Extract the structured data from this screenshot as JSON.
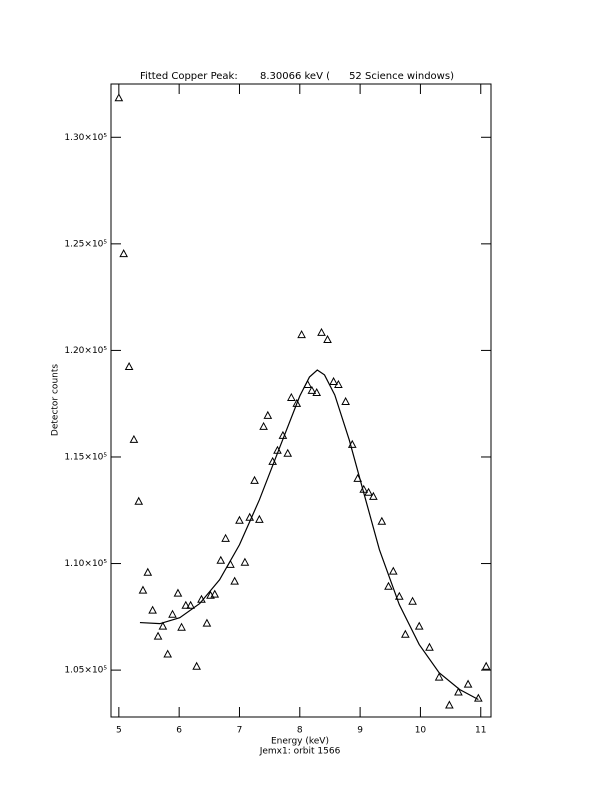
{
  "chart_data": {
    "type": "scatter",
    "title": "Fitted Copper Peak:       8.30066 keV (      52 Science windows)",
    "x_label": "Energy (keV)",
    "subtitle": "Jemx1: orbit 1566",
    "y_label": "Detector counts",
    "xlim": [
      4.87,
      11.17
    ],
    "xticks": [
      5,
      6,
      7,
      8,
      9,
      10,
      11
    ],
    "ylim": [
      102800,
      132500
    ],
    "yticks": [
      {
        "value": 105000,
        "label": "1.05×10⁵"
      },
      {
        "value": 110000,
        "label": "1.10×10⁵"
      },
      {
        "value": 115000,
        "label": "1.15×10⁵"
      },
      {
        "value": 120000,
        "label": "1.20×10⁵"
      },
      {
        "value": 125000,
        "label": "1.25×10⁵"
      },
      {
        "value": 130000,
        "label": "1.30×10⁵"
      }
    ],
    "series": [
      {
        "style": "markers",
        "marker": "triangle",
        "color": "#000000",
        "x": [
          5.0,
          5.08,
          5.17,
          5.25,
          5.33,
          5.4,
          5.48,
          5.56,
          5.65,
          5.73,
          5.81,
          5.89,
          5.98,
          6.04,
          6.11,
          6.19,
          6.29,
          6.37,
          6.46,
          6.52,
          6.59,
          6.69,
          6.77,
          6.85,
          6.92,
          7.0,
          7.09,
          7.17,
          7.25,
          7.33,
          7.4,
          7.47,
          7.55,
          7.63,
          7.72,
          7.8,
          7.86,
          7.95,
          8.03,
          8.13,
          8.2,
          8.28,
          8.36,
          8.46,
          8.56,
          8.64,
          8.76,
          8.87,
          8.96,
          9.06,
          9.14,
          9.22,
          9.36,
          9.47,
          9.55,
          9.65,
          9.75,
          9.87,
          9.98,
          10.15,
          10.31,
          10.48,
          10.63,
          10.79,
          10.96,
          11.09
        ],
        "values": [
          131830,
          124520,
          119220,
          115800,
          112900,
          108730,
          109570,
          107790,
          106570,
          107040,
          105730,
          107600,
          108590,
          106990,
          108020,
          108020,
          105160,
          108300,
          107180,
          108490,
          108540,
          110130,
          111160,
          109940,
          109150,
          112010,
          110040,
          112150,
          113880,
          112050,
          116410,
          116930,
          114770,
          115290,
          115990,
          115150,
          117770,
          117490,
          120720,
          118380,
          118100,
          118000,
          120820,
          120490,
          118520,
          118380,
          117580,
          115570,
          113970,
          113460,
          113320,
          113130,
          111960,
          108910,
          109620,
          108440,
          106660,
          108210,
          107040,
          106050,
          104650,
          103340,
          103950,
          104320,
          103660,
          105160
        ]
      },
      {
        "style": "line",
        "color": "#000000",
        "x": [
          5.35,
          5.68,
          6.01,
          6.34,
          6.67,
          7.0,
          7.33,
          7.67,
          8.0,
          8.16,
          8.29,
          8.41,
          8.58,
          8.82,
          9.07,
          9.32,
          9.65,
          9.98,
          10.31,
          10.65,
          10.96
        ],
        "values": [
          107230,
          107180,
          107460,
          108120,
          109240,
          110880,
          112990,
          115470,
          117860,
          118750,
          119080,
          118850,
          117910,
          115800,
          113220,
          110650,
          108070,
          106200,
          104880,
          104090,
          103620
        ]
      }
    ]
  }
}
